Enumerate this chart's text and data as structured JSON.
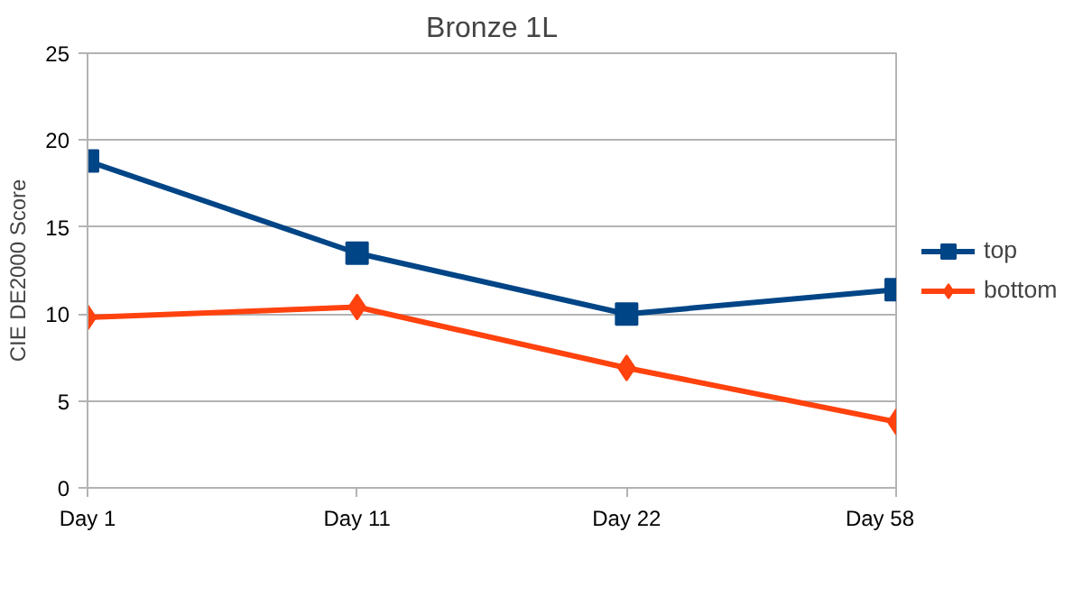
{
  "chart_data": {
    "type": "line",
    "title": "Bronze 1L",
    "ylabel": "CIE DE2000 Score",
    "categories": [
      "Day 1",
      "Day 11",
      "Day 22",
      "Day 58"
    ],
    "series": [
      {
        "name": "top",
        "color": "#004586",
        "marker": "square",
        "values": [
          18.8,
          13.5,
          10.0,
          11.4
        ]
      },
      {
        "name": "bottom",
        "color": "#ff420e",
        "marker": "diamond",
        "values": [
          9.8,
          10.4,
          6.9,
          3.8
        ]
      }
    ],
    "ylim": [
      0,
      25
    ],
    "yticks": [
      0,
      5,
      10,
      15,
      20,
      25
    ],
    "grid": "y",
    "legend": "right",
    "line_style": "solid"
  }
}
